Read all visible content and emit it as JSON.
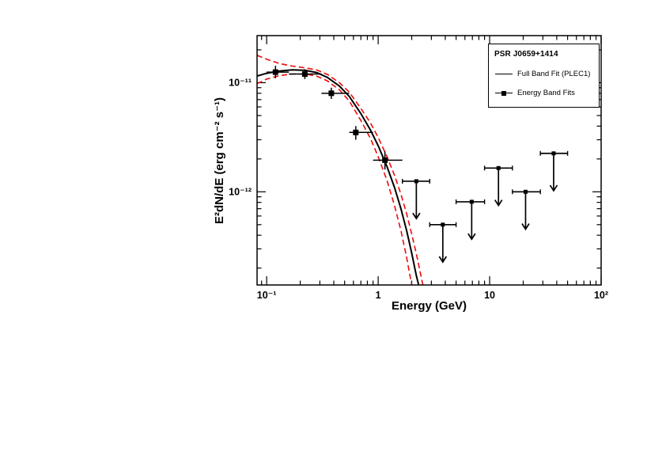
{
  "chart_data": {
    "type": "scatter",
    "title": "",
    "xlabel": "Energy (GeV)",
    "ylabel": "E²dN/dE (erg cm⁻² s⁻¹)",
    "xscale": "log",
    "yscale": "log",
    "xlim": [
      0.082,
      100
    ],
    "ylim": [
      1.4e-13,
      2.7e-11
    ],
    "grid": false,
    "legend_position": "top-right",
    "x_ticks": [
      {
        "v": 0.1,
        "label": "10⁻¹"
      },
      {
        "v": 1,
        "label": "1"
      },
      {
        "v": 10,
        "label": "10"
      },
      {
        "v": 100,
        "label": "10²"
      }
    ],
    "y_ticks": [
      {
        "v": 1e-12,
        "label": "10⁻¹²"
      },
      {
        "v": 1e-11,
        "label": "10⁻¹¹"
      }
    ],
    "legend": {
      "header": "PSR J0659+1414",
      "items": [
        {
          "label": "Full Band Fit (PLEC1)",
          "symbol": "line"
        },
        {
          "label": "Energy Band Fits",
          "symbol": "square-marker"
        }
      ]
    },
    "colors": {
      "fit": "#000000",
      "uncertainty_band": "#f00a0a",
      "marker": "#000000"
    },
    "series": [
      {
        "name": "Full Band Fit (PLEC1)",
        "type": "line",
        "style": "solid",
        "color": "#000000",
        "points": [
          [
            0.082,
            1.15e-11
          ],
          [
            0.1,
            1.22e-11
          ],
          [
            0.13,
            1.28e-11
          ],
          [
            0.17,
            1.31e-11
          ],
          [
            0.22,
            1.3e-11
          ],
          [
            0.28,
            1.24e-11
          ],
          [
            0.35,
            1.12e-11
          ],
          [
            0.45,
            9.3e-12
          ],
          [
            0.55,
            7.5e-12
          ],
          [
            0.7,
            5.2e-12
          ],
          [
            0.85,
            3.7e-12
          ],
          [
            1.0,
            2.65e-12
          ],
          [
            1.2,
            1.7e-12
          ],
          [
            1.4,
            1.1e-12
          ],
          [
            1.6,
            7e-13
          ],
          [
            1.8,
            4.4e-13
          ],
          [
            2.0,
            2.75e-13
          ],
          [
            2.2,
            1.7e-13
          ],
          [
            2.35,
            1.3e-13
          ]
        ]
      },
      {
        "name": "Fit uncertainty (upper)",
        "type": "line",
        "style": "dashed",
        "color": "#f00a0a",
        "points": [
          [
            0.082,
            1.78e-11
          ],
          [
            0.1,
            1.64e-11
          ],
          [
            0.13,
            1.5e-11
          ],
          [
            0.17,
            1.42e-11
          ],
          [
            0.22,
            1.37e-11
          ],
          [
            0.28,
            1.31e-11
          ],
          [
            0.35,
            1.19e-11
          ],
          [
            0.45,
            1e-11
          ],
          [
            0.55,
            8.2e-12
          ],
          [
            0.7,
            5.8e-12
          ],
          [
            0.85,
            4.3e-12
          ],
          [
            1.0,
            3.15e-12
          ],
          [
            1.2,
            2.1e-12
          ],
          [
            1.4,
            1.42e-12
          ],
          [
            1.6,
            9.5e-13
          ],
          [
            1.8,
            6.3e-13
          ],
          [
            2.0,
            4.1e-13
          ],
          [
            2.2,
            2.7e-13
          ],
          [
            2.5,
            1.45e-13
          ],
          [
            2.6,
            1.2e-13
          ]
        ]
      },
      {
        "name": "Fit uncertainty (lower)",
        "type": "line",
        "style": "dashed",
        "color": "#f00a0a",
        "points": [
          [
            0.082,
            9.8e-12
          ],
          [
            0.1,
            1.08e-11
          ],
          [
            0.13,
            1.16e-11
          ],
          [
            0.17,
            1.2e-11
          ],
          [
            0.22,
            1.2e-11
          ],
          [
            0.28,
            1.15e-11
          ],
          [
            0.35,
            1.04e-11
          ],
          [
            0.45,
            8.6e-12
          ],
          [
            0.55,
            6.8e-12
          ],
          [
            0.7,
            4.5e-12
          ],
          [
            0.85,
            3.1e-12
          ],
          [
            1.0,
            2.1e-12
          ],
          [
            1.2,
            1.27e-12
          ],
          [
            1.4,
            7.5e-13
          ],
          [
            1.6,
            4.4e-13
          ],
          [
            1.8,
            2.5e-13
          ],
          [
            1.95,
            1.6e-13
          ],
          [
            2.05,
            1.25e-13
          ]
        ]
      }
    ],
    "data_points": [
      {
        "x": 0.12,
        "y": 1.25e-11,
        "x_lo": 0.1,
        "x_hi": 0.158,
        "y_lo": 1.1e-11,
        "y_hi": 1.43e-11
      },
      {
        "x": 0.22,
        "y": 1.2e-11,
        "x_lo": 0.158,
        "x_hi": 0.31,
        "y_lo": 1.08e-11,
        "y_hi": 1.33e-11
      },
      {
        "x": 0.38,
        "y": 8e-12,
        "x_lo": 0.31,
        "x_hi": 0.55,
        "y_lo": 7.1e-12,
        "y_hi": 9e-12
      },
      {
        "x": 0.63,
        "y": 3.5e-12,
        "x_lo": 0.55,
        "x_hi": 0.9,
        "y_lo": 3e-12,
        "y_hi": 4e-12
      },
      {
        "x": 1.15,
        "y": 1.95e-12,
        "x_lo": 0.9,
        "x_hi": 1.65,
        "y_lo": 1.6e-12,
        "y_hi": 2.35e-12
      }
    ],
    "upper_limits": [
      {
        "x": 2.2,
        "y": 1.25e-12,
        "x_lo": 1.65,
        "x_hi": 2.9
      },
      {
        "x": 3.8,
        "y": 5e-13,
        "x_lo": 2.9,
        "x_hi": 5.0
      },
      {
        "x": 6.9,
        "y": 8.1e-13,
        "x_lo": 5.0,
        "x_hi": 9.0
      },
      {
        "x": 12.0,
        "y": 1.65e-12,
        "x_lo": 9.0,
        "x_hi": 16.0
      },
      {
        "x": 21.0,
        "y": 1e-12,
        "x_lo": 16.0,
        "x_hi": 28.5
      },
      {
        "x": 37.5,
        "y": 2.25e-12,
        "x_lo": 28.5,
        "x_hi": 50.0
      }
    ]
  }
}
